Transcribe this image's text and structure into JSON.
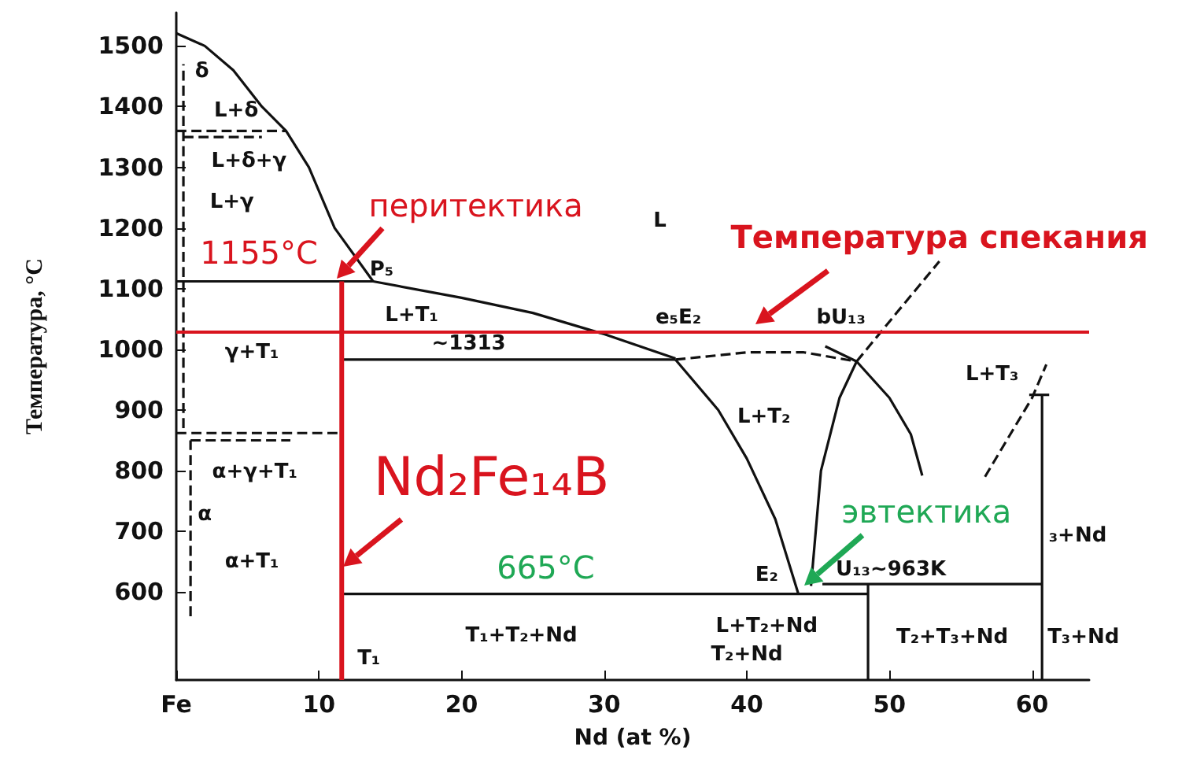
{
  "chart_data": {
    "type": "line",
    "xlabel": "Nd (at %)",
    "ylabel": "Температура, °C",
    "xlim": [
      0,
      64
    ],
    "ylim": [
      455,
      1555
    ],
    "xticks": [
      {
        "value": 0,
        "label": "Fe"
      },
      10,
      20,
      30,
      40,
      50,
      60
    ],
    "yticks": [
      600,
      700,
      800,
      900,
      1000,
      1100,
      1200,
      1300,
      1400,
      1500
    ],
    "grid": false,
    "marker": "none",
    "series": [
      {
        "color": "#111111",
        "x": [
          0,
          2,
          4,
          6,
          7.7,
          9.3,
          11.1,
          13.8
        ],
        "values": [
          1521,
          1500,
          1460,
          1400,
          1360,
          1300,
          1200,
          1112
        ]
      },
      {
        "color": "#111111",
        "x": [
          0,
          13.8,
          20,
          25,
          30,
          35
        ],
        "values": [
          1112,
          1112,
          1085,
          1060,
          1025,
          985
        ]
      },
      {
        "color": "#111111",
        "x": [
          11.6,
          35
        ],
        "values": [
          983,
          983
        ]
      },
      {
        "color": "#111111",
        "line_style": "dashed",
        "x": [
          35,
          40,
          44,
          47.7
        ],
        "values": [
          983,
          995,
          995,
          980
        ]
      },
      {
        "color": "#111111",
        "x": [
          35,
          38,
          40,
          42,
          43.6
        ],
        "values": [
          983,
          900,
          820,
          720,
          598
        ]
      },
      {
        "color": "#111111",
        "x": [
          44.5,
          45.2,
          46.5,
          47.7
        ],
        "values": [
          610,
          800,
          920,
          980
        ]
      },
      {
        "color": "#111111",
        "line_style": "dashed",
        "x": [
          47.7,
          50.5,
          53.5
        ],
        "values": [
          980,
          1060,
          1145
        ]
      },
      {
        "color": "#111111",
        "x": [
          45.5,
          47.7,
          50,
          51.5,
          52.3
        ],
        "values": [
          1005,
          980,
          920,
          860,
          792
        ]
      },
      {
        "color": "#111111",
        "line_style": "dashed",
        "x": [
          56.7,
          60,
          61
        ],
        "values": [
          790,
          920,
          975
        ]
      },
      {
        "color": "#111111",
        "x": [
          60.7,
          60.7
        ],
        "values": [
          455,
          925
        ]
      },
      {
        "color": "#111111",
        "x": [
          59.8,
          61.2
        ],
        "values": [
          925,
          925
        ]
      },
      {
        "color": "#111111",
        "x": [
          11.6,
          48.5
        ],
        "values": [
          597,
          597
        ]
      },
      {
        "color": "#111111",
        "x": [
          45.3,
          60.7
        ],
        "values": [
          613,
          613
        ]
      },
      {
        "color": "#111111",
        "x": [
          48.5,
          48.5
        ],
        "values": [
          455,
          613
        ]
      },
      {
        "color": "#111111",
        "line_style": "dashed",
        "x": [
          0,
          7.7
        ],
        "values": [
          1360,
          1360
        ]
      },
      {
        "color": "#111111",
        "line_style": "dashed",
        "x": [
          0.5,
          6
        ],
        "values": [
          1350,
          1350
        ]
      },
      {
        "color": "#111111",
        "line_style": "dashed",
        "x": [
          0.5,
          0.5
        ],
        "values": [
          870,
          1470
        ]
      },
      {
        "color": "#111111",
        "line_style": "dashed",
        "x": [
          0,
          11.6
        ],
        "values": [
          862,
          862
        ]
      },
      {
        "color": "#111111",
        "line_style": "dashed",
        "x": [
          1,
          8
        ],
        "values": [
          850,
          850
        ]
      },
      {
        "color": "#111111",
        "line_style": "dashed",
        "x": [
          1,
          1
        ],
        "values": [
          560,
          850
        ]
      },
      {
        "color": "#d9141e",
        "x": [
          11.6,
          11.6
        ],
        "values": [
          455,
          1112
        ]
      }
    ],
    "ref_lines": [
      {
        "axis": "y",
        "value": 1028,
        "color": "#d9141e"
      }
    ],
    "annotations": [
      "перитектика",
      "1155°C",
      "Температура спекания",
      "Nd₂Fe₁₄B",
      "665°C",
      "эвтектика",
      "L",
      "P₅",
      "L+T₁",
      "∼1313",
      "e₅E₂",
      "bU₁₃",
      "L+T₃",
      "γ+T₁",
      "δ",
      "L+δ",
      "L+δ+γ",
      "L+γ",
      "L+T₂",
      "α+γ+T₁",
      "α",
      "α+T₁",
      "U₁₃∼963K",
      "₃+Nd",
      "E₂",
      "L+T₂+Nd",
      "T₂+Nd",
      "T₁+T₂+Nd",
      "T₂+T₃+Nd",
      "T₃+Nd",
      "T₁"
    ]
  }
}
